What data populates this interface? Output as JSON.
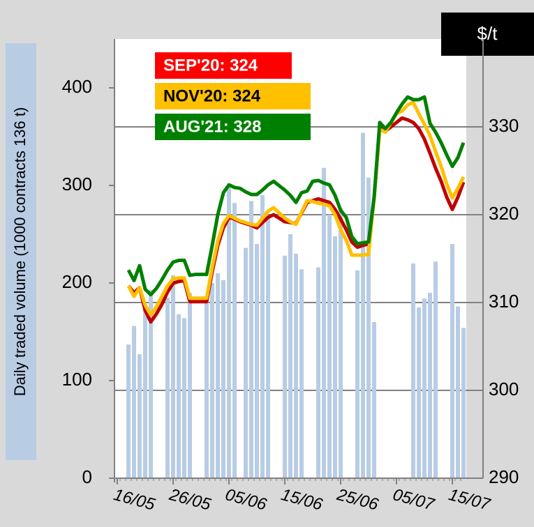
{
  "chart_data": {
    "type": "combo",
    "y_label": "Daily traded volume (1000 contracts  136 t)",
    "y2_label": "$/t",
    "categories": [
      "16/05",
      null,
      null,
      null,
      null,
      null,
      null,
      null,
      null,
      null,
      "26/05",
      null,
      null,
      null,
      null,
      null,
      null,
      null,
      null,
      null,
      "05/06",
      null,
      null,
      null,
      null,
      null,
      null,
      null,
      null,
      null,
      "15/06",
      null,
      null,
      null,
      null,
      null,
      null,
      null,
      null,
      null,
      "25/06",
      null,
      null,
      null,
      null,
      null,
      null,
      null,
      null,
      null,
      "05/07",
      null,
      null,
      null,
      null,
      null,
      null,
      null,
      null,
      null,
      "15/07",
      null,
      null
    ],
    "bars": {
      "color": "#b8cce4",
      "values": [
        null,
        null,
        137,
        156,
        127,
        175,
        193,
        null,
        null,
        185,
        208,
        168,
        164,
        190,
        null,
        null,
        180,
        200,
        210,
        203,
        300,
        282,
        null,
        236,
        284,
        240,
        290,
        270,
        null,
        null,
        228,
        250,
        230,
        214,
        null,
        null,
        216,
        318,
        270,
        248,
        277,
        null,
        null,
        213,
        354,
        308,
        160,
        null,
        null,
        null,
        null,
        null,
        null,
        220,
        175,
        184,
        190,
        222,
        null,
        null,
        240,
        176,
        154
      ]
    },
    "series": [
      {
        "name": "SEP'20: 324",
        "color": "#c00000",
        "legend_color": "#ff0000",
        "legend_text_color": "#ffffff",
        "axis": "y2",
        "values": [
          null,
          null,
          311.9,
          311.1,
          311.7,
          309.1,
          307.8,
          308.7,
          309.8,
          311.2,
          312.2,
          312.4,
          312.5,
          310.1,
          310.1,
          310.1,
          310.1,
          313.5,
          316.5,
          318.5,
          319.7,
          319.5,
          319.2,
          319.0,
          318.8,
          318.5,
          319.1,
          319.7,
          320.0,
          319.6,
          319.2,
          319.1,
          319.0,
          320.2,
          321.4,
          321.6,
          321.8,
          321.6,
          321.4,
          320.6,
          319.5,
          318.3,
          316.9,
          316.3,
          316.5,
          316.7,
          322,
          329.9,
          329.5,
          330.0,
          330.5,
          331.0,
          330.8,
          330.5,
          329.8,
          328.6,
          327,
          325.3,
          323.8,
          322,
          320.6,
          322,
          323.7
        ]
      },
      {
        "name": "NOV'20: 324",
        "color": "#ffc000",
        "legend_color": "#ffc000",
        "legend_text_color": "#000000",
        "axis": "y2",
        "values": [
          null,
          null,
          311.9,
          310.7,
          311.7,
          309.7,
          308.6,
          309.5,
          310.7,
          311.9,
          312.7,
          312.8,
          312.8,
          310.5,
          310.5,
          310.5,
          310.5,
          314,
          317,
          319,
          319.9,
          319.6,
          319.3,
          319.1,
          318.9,
          318.8,
          319.6,
          320.4,
          320.8,
          320.2,
          319.6,
          319.2,
          318.9,
          320.3,
          321.6,
          321.5,
          321.3,
          321.2,
          321.0,
          320,
          318.3,
          317.1,
          315.4,
          315.4,
          315.4,
          315.5,
          322,
          329.7,
          329.4,
          330.5,
          331.5,
          331.8,
          332.5,
          332.8,
          331.5,
          330.3,
          329,
          327.2,
          325.5,
          323.5,
          321.9,
          323,
          324.3
        ]
      },
      {
        "name": "AUG'21: 328",
        "color": "#008000",
        "legend_color": "#008000",
        "legend_text_color": "#ffffff",
        "axis": "y2",
        "values": [
          null,
          null,
          313.7,
          312.5,
          314.2,
          311.5,
          310.9,
          311.6,
          312.6,
          313.7,
          314.6,
          314.8,
          314.8,
          313.1,
          313.2,
          313.2,
          313.2,
          316.5,
          320,
          322.5,
          323.4,
          323.1,
          323,
          322.6,
          322.3,
          322.3,
          322.8,
          323.4,
          323.8,
          323.3,
          322.8,
          322.2,
          321.4,
          322.5,
          322.7,
          323.8,
          323.9,
          323.6,
          323.4,
          322.2,
          320.5,
          319.7,
          317.5,
          316.7,
          316.8,
          316.9,
          322,
          330.5,
          329.8,
          330.5,
          331.6,
          332.6,
          333.4,
          333.1,
          333.1,
          333.4,
          330.4,
          329.4,
          328.2,
          326.8,
          325.5,
          326.5,
          328.2
        ]
      }
    ],
    "ylim": [
      0,
      450
    ],
    "yticks": [
      0,
      100,
      200,
      300,
      400
    ],
    "y2lim": [
      290,
      340
    ],
    "y2ticks": [
      290,
      300,
      310,
      320,
      330
    ],
    "grid": "y2"
  }
}
